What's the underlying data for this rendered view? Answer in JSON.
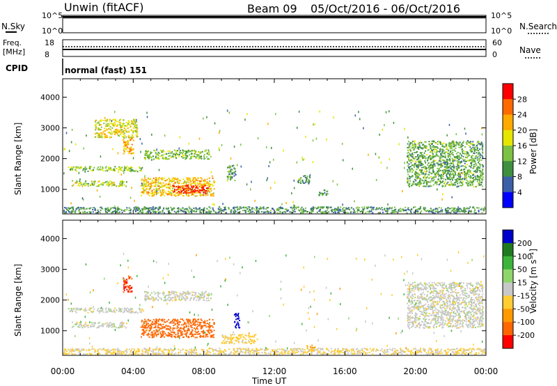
{
  "header": {
    "station": "Unwin (fitACF)",
    "beam": "Beam 09",
    "date_range": "05/Oct/2016 - 06/Oct/2016"
  },
  "top_panels": {
    "nsky_label": "N.Sky",
    "nsky_ticks": [
      "10^5",
      "10^0"
    ],
    "nsearch_label": "N.Search",
    "nsearch_ticks": [
      "10^5",
      "10^0"
    ],
    "freq_label_1": "Freq.",
    "freq_label_2": "[MHz]",
    "freq_ticks": [
      "18",
      "8"
    ],
    "nave_label": "Nave",
    "nave_ticks": [
      "60",
      "0"
    ],
    "cpid_label": "CPID",
    "cpid_value": "normal (fast) 151"
  },
  "x_axis": {
    "label": "Time UT",
    "ticks": [
      "00:00",
      "04:00",
      "08:00",
      "12:00",
      "16:00",
      "20:00",
      "00:00"
    ]
  },
  "power_colorbar": {
    "label": "Power [dB]",
    "ticks": [
      "28",
      "24",
      "20",
      "16",
      "12",
      "8",
      "4"
    ],
    "colors": [
      "#ff0000",
      "#ff6a00",
      "#ffaa00",
      "#e6e600",
      "#7cc242",
      "#3e8f3e",
      "#3c5fa8",
      "#0000ff"
    ]
  },
  "velocity_colorbar": {
    "label": "Velocity [m s⁻¹]",
    "ticks": [
      "200",
      "100",
      "50",
      "15",
      "-15",
      "-50",
      "-100",
      "-200"
    ],
    "colors": [
      "#0000cc",
      "#1f7a1f",
      "#3cb43c",
      "#8fd66a",
      "#c8c8c8",
      "#ffcc33",
      "#ff9900",
      "#ff6600",
      "#ff0000"
    ]
  },
  "chart_data": [
    {
      "type": "heatmap",
      "title": "",
      "xlabel": "Time UT",
      "ylabel": "Slant Range [km]",
      "xlim": [
        0,
        24
      ],
      "ylim": [
        200,
        4600
      ],
      "yticks": [
        1000,
        2000,
        3000,
        4000
      ],
      "colorbar": "Power [dB]",
      "regions": [
        {
          "t0": 0.5,
          "t1": 3.6,
          "r0": 1120,
          "r1": 1300,
          "value": 14
        },
        {
          "t0": 0.3,
          "t1": 4.5,
          "r0": 1600,
          "r1": 1760,
          "value": 12
        },
        {
          "t0": 3.4,
          "t1": 4.0,
          "r0": 2150,
          "r1": 2700,
          "value": 20
        },
        {
          "t0": 4.4,
          "t1": 8.6,
          "r0": 800,
          "r1": 1400,
          "value": 18
        },
        {
          "t0": 6.2,
          "t1": 8.2,
          "r0": 900,
          "r1": 1150,
          "value": 28
        },
        {
          "t0": 4.6,
          "t1": 8.4,
          "r0": 2000,
          "r1": 2300,
          "value": 12
        },
        {
          "t0": 1.8,
          "t1": 4.2,
          "r0": 2700,
          "r1": 3300,
          "value": 16
        },
        {
          "t0": 9.3,
          "t1": 9.8,
          "r0": 1300,
          "r1": 1800,
          "value": 10
        },
        {
          "t0": 13.3,
          "t1": 14.0,
          "r0": 1200,
          "r1": 1500,
          "value": 8
        },
        {
          "t0": 14.5,
          "t1": 15.0,
          "r0": 800,
          "r1": 1000,
          "value": 8
        },
        {
          "t0": 19.5,
          "t1": 23.8,
          "r0": 1100,
          "r1": 2600,
          "value": 10
        },
        {
          "t0": 0.0,
          "t1": 24.0,
          "r0": 250,
          "r1": 450,
          "value": 8
        }
      ]
    },
    {
      "type": "heatmap",
      "title": "",
      "xlabel": "Time UT",
      "ylabel": "Slant Range [km]",
      "xlim": [
        0,
        24
      ],
      "ylim": [
        200,
        4600
      ],
      "yticks": [
        1000,
        2000,
        3000,
        4000
      ],
      "colorbar": "Velocity [m s⁻¹]",
      "regions": [
        {
          "t0": 0.5,
          "t1": 3.6,
          "r0": 1120,
          "r1": 1300,
          "value": 0
        },
        {
          "t0": 0.3,
          "t1": 4.5,
          "r0": 1600,
          "r1": 1760,
          "value": 0
        },
        {
          "t0": 3.4,
          "t1": 3.9,
          "r0": 2250,
          "r1": 2800,
          "value": -200
        },
        {
          "t0": 4.4,
          "t1": 8.6,
          "r0": 800,
          "r1": 1400,
          "value": -150
        },
        {
          "t0": 4.6,
          "t1": 8.4,
          "r0": 2000,
          "r1": 2300,
          "value": 0
        },
        {
          "t0": 9.7,
          "t1": 10.0,
          "r0": 1100,
          "r1": 1600,
          "value": 200
        },
        {
          "t0": 9.0,
          "t1": 11.0,
          "r0": 600,
          "r1": 900,
          "value": -30
        },
        {
          "t0": 13.8,
          "t1": 14.3,
          "r0": 350,
          "r1": 550,
          "value": -60
        },
        {
          "t0": 19.5,
          "t1": 23.8,
          "r0": 1100,
          "r1": 2600,
          "value": 0
        },
        {
          "t0": 0.0,
          "t1": 24.0,
          "r0": 250,
          "r1": 450,
          "value": -20
        }
      ]
    }
  ]
}
